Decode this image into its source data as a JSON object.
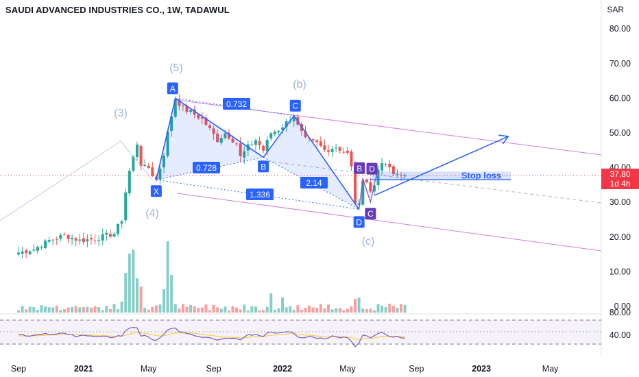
{
  "header": {
    "title": "SAUDI ADVANCED INDUSTRIES CO., 1W, TADAWUL",
    "currency": "SAR"
  },
  "price_badge": {
    "price": "37.80",
    "countdown": "1d 4h",
    "color": "#f23645"
  },
  "colors": {
    "up": "#26a69a",
    "down": "#ef5350",
    "pattern": "#2962ff",
    "channel": "#d17fe0",
    "rsi": "#7e57c2",
    "rsi_ma": "#f7d14a"
  },
  "chart_data": [
    {
      "type": "candlestick",
      "title": "SAUDI ADVANCED INDUSTRIES CO., 1W, TADAWUL",
      "ylabel": "SAR",
      "ylim": [
        -2,
        85
      ],
      "y_ticks": [
        "80.00",
        "70.00",
        "60.00",
        "50.00",
        "40.00",
        "30.00",
        "20.00",
        "10.00",
        "0.00"
      ],
      "x_ticks": [
        {
          "label": "Sep",
          "t": 0,
          "bold": false
        },
        {
          "label": "2021",
          "t": 17,
          "bold": true
        },
        {
          "label": "May",
          "t": 34,
          "bold": false
        },
        {
          "label": "Sep",
          "t": 51,
          "bold": false
        },
        {
          "label": "2022",
          "t": 69,
          "bold": true
        },
        {
          "label": "May",
          "t": 86,
          "bold": false
        },
        {
          "label": "Sep",
          "t": 104,
          "bold": false
        },
        {
          "label": "2023",
          "t": 121,
          "bold": true
        },
        {
          "label": "May",
          "t": 139,
          "bold": false
        }
      ],
      "last_price": 37.8,
      "price_segments": [
        [
          0,
          15.5
        ],
        [
          4,
          16.5
        ],
        [
          8,
          19
        ],
        [
          12,
          20.5
        ],
        [
          16,
          19
        ],
        [
          20,
          19.5
        ],
        [
          25,
          21
        ],
        [
          27,
          25
        ],
        [
          28,
          33
        ],
        [
          29,
          39
        ],
        [
          30,
          43
        ],
        [
          31,
          47
        ],
        [
          32,
          41
        ],
        [
          33,
          40
        ],
        [
          34,
          40
        ],
        [
          35,
          38
        ],
        [
          36,
          36.5
        ],
        [
          37,
          40
        ],
        [
          38,
          44
        ],
        [
          39,
          50
        ],
        [
          40,
          55
        ],
        [
          41,
          60
        ],
        [
          43,
          57
        ],
        [
          45,
          56
        ],
        [
          48,
          54
        ],
        [
          50,
          51
        ],
        [
          52,
          48
        ],
        [
          54,
          50
        ],
        [
          57,
          47
        ],
        [
          58,
          43
        ],
        [
          60,
          46
        ],
        [
          62,
          48
        ],
        [
          64,
          45
        ],
        [
          66,
          50
        ],
        [
          68,
          51
        ],
        [
          70,
          53
        ],
        [
          72,
          55
        ],
        [
          73,
          52
        ],
        [
          75,
          48
        ],
        [
          78,
          47
        ],
        [
          80,
          45
        ],
        [
          83,
          46
        ],
        [
          86,
          44
        ],
        [
          87,
          40
        ],
        [
          88,
          30
        ],
        [
          89,
          29
        ],
        [
          90,
          37
        ],
        [
          91,
          36
        ],
        [
          92,
          33
        ],
        [
          93,
          35
        ],
        [
          94,
          40
        ],
        [
          96,
          41
        ],
        [
          98,
          38
        ],
        [
          100,
          38.5
        ],
        [
          101,
          37.8
        ]
      ],
      "harmonic_points": [
        {
          "label": "X",
          "t": 36,
          "price": 36.5
        },
        {
          "label": "A",
          "t": 41,
          "price": 60
        },
        {
          "label": "B",
          "t": 64,
          "price": 43
        },
        {
          "label": "C",
          "t": 72,
          "price": 55
        },
        {
          "label": "D",
          "t": 89,
          "price": 28
        }
      ],
      "ratios": [
        "0.732",
        "0.728",
        "2.14",
        "1.336"
      ],
      "small_pattern": [
        "B",
        "D",
        "C"
      ],
      "wave_labels": [
        "(3)",
        "(4)",
        "(5)",
        "(b)",
        "(c)",
        "(4)"
      ],
      "annotation": "Stop loss",
      "stop_loss_level": 36.5,
      "projection": {
        "from_t": 93,
        "from_price": 32,
        "to_t": 128,
        "to_price": 49
      }
    },
    {
      "type": "line",
      "name": "RSI",
      "ylim": [
        0,
        100
      ],
      "y_ticks": [
        "80.00",
        "40.00"
      ]
    }
  ]
}
